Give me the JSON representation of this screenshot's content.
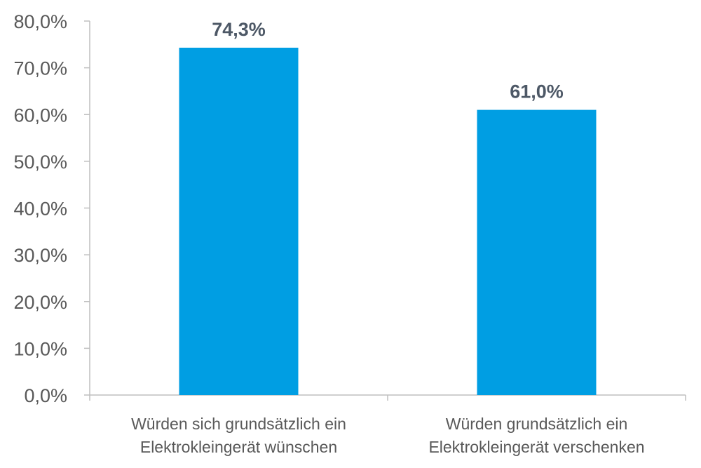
{
  "chart_data": {
    "type": "bar",
    "categories": [
      [
        "Würden sich grundsätzlich ein",
        "Elektrokleingerät wünschen"
      ],
      [
        "Würden grundsätzlich ein",
        "Elektrokleingerät verschenken"
      ]
    ],
    "values": [
      74.3,
      61.0
    ],
    "data_labels": [
      "74,3%",
      "61,0%"
    ],
    "ylim": [
      0,
      80
    ],
    "y_ticks": [
      0,
      10,
      20,
      30,
      40,
      50,
      60,
      70,
      80
    ],
    "y_tick_labels": [
      "0,0%",
      "10,0%",
      "20,0%",
      "30,0%",
      "40,0%",
      "50,0%",
      "60,0%",
      "70,0%",
      "80,0%"
    ],
    "title": "",
    "xlabel": "",
    "ylabel": "",
    "grid": false,
    "legend": "none",
    "bar_color": "#009ee3",
    "axis_color": "#bfbfbf"
  }
}
